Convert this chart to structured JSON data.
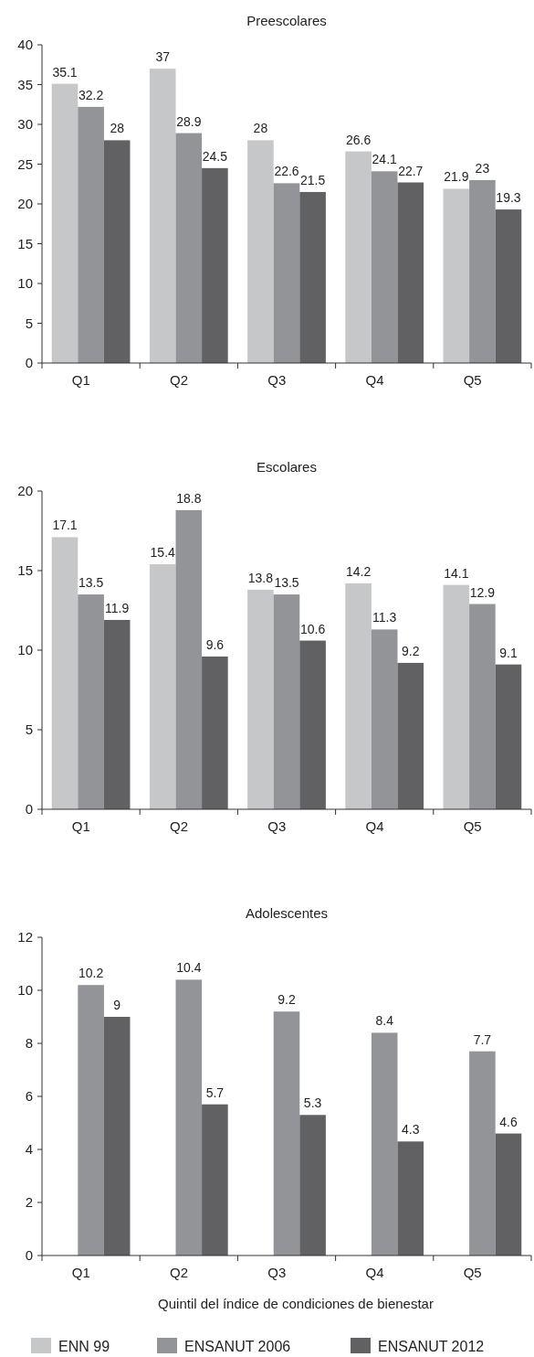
{
  "chart_data": [
    {
      "type": "bar",
      "title": "Preescolares",
      "categories": [
        "Q1",
        "Q2",
        "Q3",
        "Q4",
        "Q5"
      ],
      "ylim": [
        0,
        40
      ],
      "yticks": [
        0,
        5,
        10,
        15,
        20,
        25,
        30,
        35,
        40
      ],
      "grid": false,
      "data_labels": true,
      "series": [
        {
          "color": "#c6c7c9",
          "values": [
            35.1,
            37,
            28,
            26.6,
            21.9
          ]
        },
        {
          "color": "#939498",
          "values": [
            32.2,
            28.9,
            22.6,
            24.1,
            23
          ]
        },
        {
          "color": "#616163",
          "values": [
            28,
            24.5,
            21.5,
            22.7,
            19.3
          ]
        }
      ]
    },
    {
      "type": "bar",
      "title": "Escolares",
      "categories": [
        "Q1",
        "Q2",
        "Q3",
        "Q4",
        "Q5"
      ],
      "ylim": [
        0,
        20
      ],
      "yticks": [
        0,
        5,
        10,
        15,
        20
      ],
      "grid": false,
      "data_labels": true,
      "series": [
        {
          "color": "#c6c7c9",
          "values": [
            17.1,
            15.4,
            13.8,
            14.2,
            14.1
          ]
        },
        {
          "color": "#939498",
          "values": [
            13.5,
            18.8,
            13.5,
            11.3,
            12.9
          ]
        },
        {
          "color": "#616163",
          "values": [
            11.9,
            9.6,
            10.6,
            9.2,
            9.1
          ]
        }
      ]
    },
    {
      "type": "bar",
      "title": "Adolescentes",
      "xlabel": "Quintil del índice de condiciones de bienestar",
      "categories": [
        "Q1",
        "Q2",
        "Q3",
        "Q4",
        "Q5"
      ],
      "ylim": [
        0,
        12
      ],
      "yticks": [
        0,
        2,
        4,
        6,
        8,
        10,
        12
      ],
      "grid": false,
      "data_labels": true,
      "legend": "bottom",
      "series": [
        {
          "name": "ENN 99",
          "color": "#c6c7c9",
          "values": [
            null,
            null,
            null,
            null,
            null
          ]
        },
        {
          "name": "ENSANUT 2006",
          "color": "#939498",
          "values": [
            10.2,
            10.4,
            9.2,
            8.4,
            7.7
          ]
        },
        {
          "name": "ENSANUT 2012",
          "color": "#616163",
          "values": [
            9,
            5.7,
            5.3,
            4.3,
            4.6
          ]
        }
      ]
    }
  ]
}
